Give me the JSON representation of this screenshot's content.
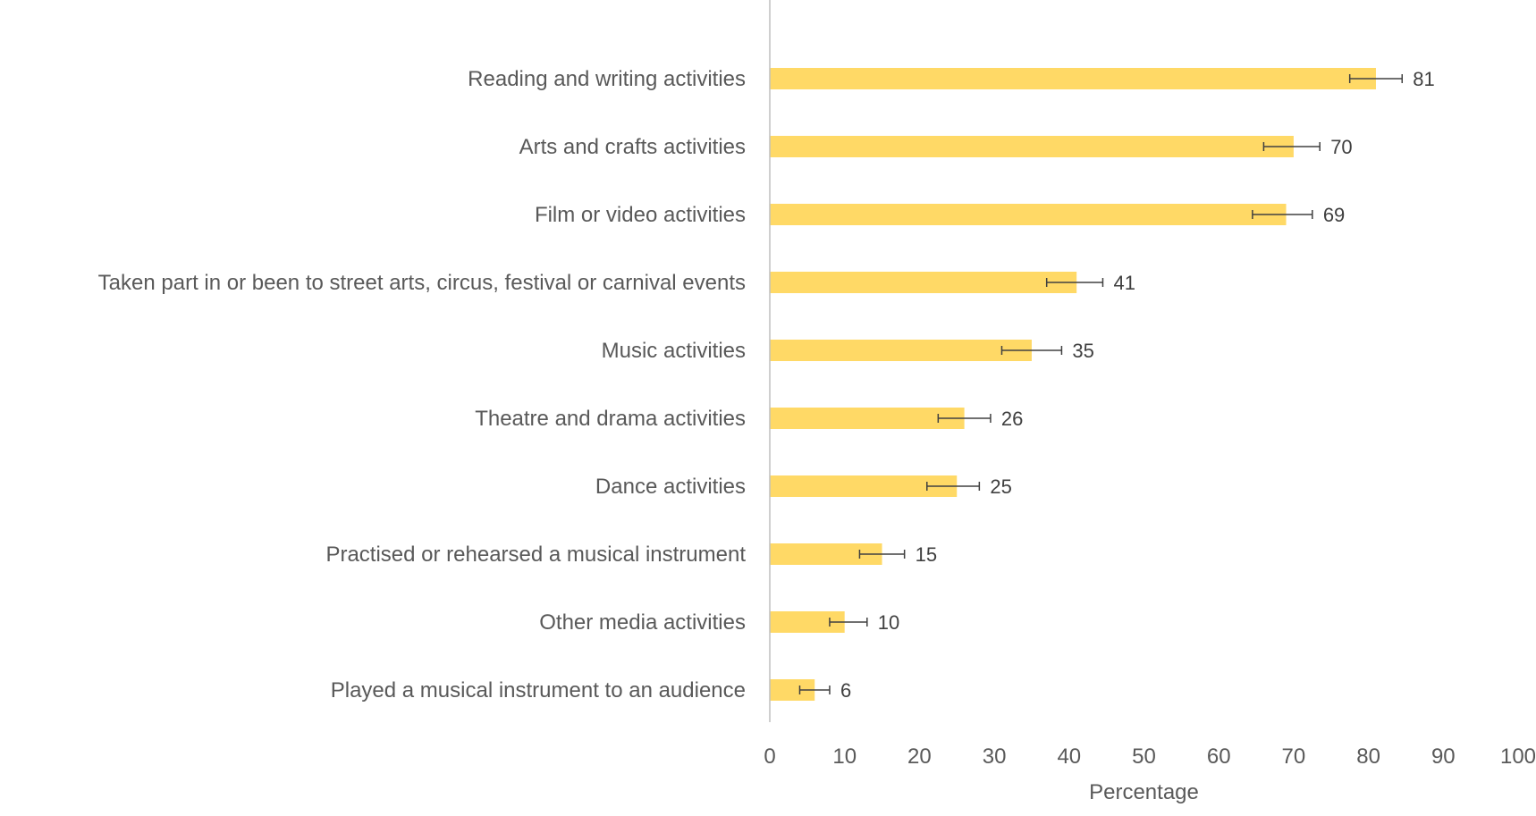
{
  "chart_data": {
    "type": "bar",
    "orientation": "horizontal",
    "title": "",
    "xlabel": "Percentage",
    "ylabel": "",
    "xlim": [
      0,
      100
    ],
    "xticks": [
      0,
      10,
      20,
      30,
      40,
      50,
      60,
      70,
      80,
      90,
      100
    ],
    "grid": false,
    "legend": "none",
    "bar_color": "#FFD966",
    "categories": [
      "Reading and writing activities",
      "Arts and crafts activities",
      "Film or video activities",
      "Taken part in or been to street arts, circus, festival or carnival events",
      "Music activities",
      "Theatre and drama activities",
      "Dance activities",
      "Practised or rehearsed a musical instrument",
      "Other media activities",
      "Played a musical instrument to an audience"
    ],
    "values": [
      81,
      70,
      69,
      41,
      35,
      26,
      25,
      15,
      10,
      6
    ],
    "error_low": [
      77.5,
      66,
      64.5,
      37,
      31,
      22.5,
      21,
      12,
      8,
      4
    ],
    "error_high": [
      84.5,
      73.5,
      72.5,
      44.5,
      39,
      29.5,
      28,
      18,
      13,
      8
    ],
    "value_labels": [
      "81",
      "70",
      "69",
      "41",
      "35",
      "26",
      "25",
      "15",
      "10",
      "6"
    ]
  }
}
